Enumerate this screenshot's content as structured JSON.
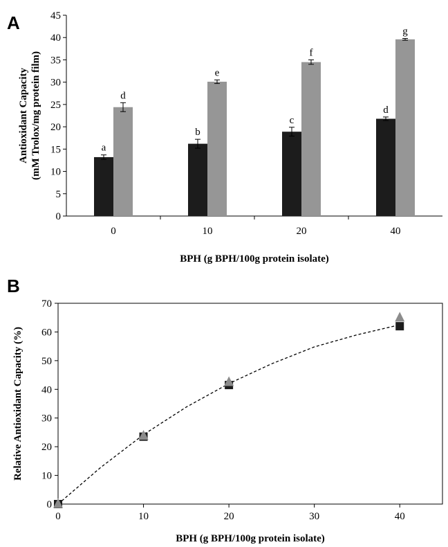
{
  "chart_data": [
    {
      "panel": "A",
      "type": "bar",
      "categories": [
        "0",
        "10",
        "20",
        "40"
      ],
      "series": [
        {
          "color": "#1c1c1c",
          "values": [
            13.2,
            16.2,
            18.9,
            21.8
          ],
          "errors": [
            0.5,
            1.0,
            1.0,
            0.4
          ],
          "labels": [
            "a",
            "b",
            "c",
            "d"
          ]
        },
        {
          "color": "#969696",
          "values": [
            24.4,
            30.1,
            34.5,
            39.6
          ],
          "errors": [
            1.0,
            0.4,
            0.5,
            0.2
          ],
          "labels": [
            "d",
            "e",
            "f",
            "g"
          ]
        }
      ],
      "xlabel": "BPH (g BPH/100g protein isolate)",
      "ylabel_line1": "Antioxidant Capacity",
      "ylabel_line2": "(mM Trolox/mg protein film)",
      "ylim": [
        0,
        45
      ],
      "yticks": [
        "0",
        "5",
        "10",
        "15",
        "20",
        "25",
        "30",
        "35",
        "40",
        "45"
      ],
      "grid": false,
      "legend": "none"
    },
    {
      "panel": "B",
      "type": "scatter",
      "xlabel": "BPH (g BPH/100g protein isolate)",
      "ylabel": "Relative Antioxidant Capacity (%)",
      "xlim": [
        0,
        45
      ],
      "ylim": [
        0,
        70
      ],
      "xticks": [
        "0",
        "10",
        "20",
        "30",
        "40"
      ],
      "yticks": [
        "0",
        "10",
        "20",
        "30",
        "40",
        "50",
        "60",
        "70"
      ],
      "series": [
        {
          "marker": "square",
          "color": "#1c1c1c",
          "x": [
            0,
            10,
            20,
            40
          ],
          "y": [
            0,
            23.5,
            41.5,
            62
          ]
        },
        {
          "marker": "triangle",
          "color": "#8c8c8c",
          "x": [
            0,
            10,
            20,
            40
          ],
          "y": [
            0,
            23.8,
            42.5,
            65
          ]
        }
      ],
      "trendline": {
        "style": "dashed",
        "type": "polynomial",
        "x": [
          0,
          5,
          10,
          15,
          20,
          25,
          30,
          35,
          40
        ],
        "y": [
          0,
          12.8,
          24.2,
          33.8,
          42.0,
          48.9,
          54.8,
          59.0,
          62.5
        ]
      },
      "grid": false,
      "legend": "none"
    }
  ]
}
